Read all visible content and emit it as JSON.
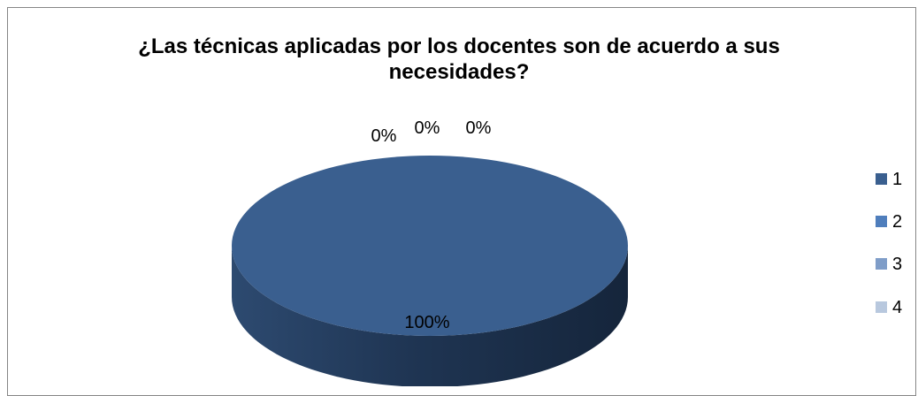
{
  "chart_data": {
    "type": "pie",
    "title_lines": [
      "¿Las técnicas aplicadas por los docentes son de acuerdo a sus",
      "necesidades?"
    ],
    "categories": [
      "1",
      "2",
      "3",
      "4"
    ],
    "values": [
      100,
      0,
      0,
      0
    ],
    "data_labels": [
      "100%",
      "0%",
      "0%",
      "0%"
    ],
    "colors": [
      "#3A5F8F",
      "#4F7EBC",
      "#7F9DC8",
      "#B8C8DE"
    ],
    "legend_position": "right",
    "style": "3d"
  }
}
